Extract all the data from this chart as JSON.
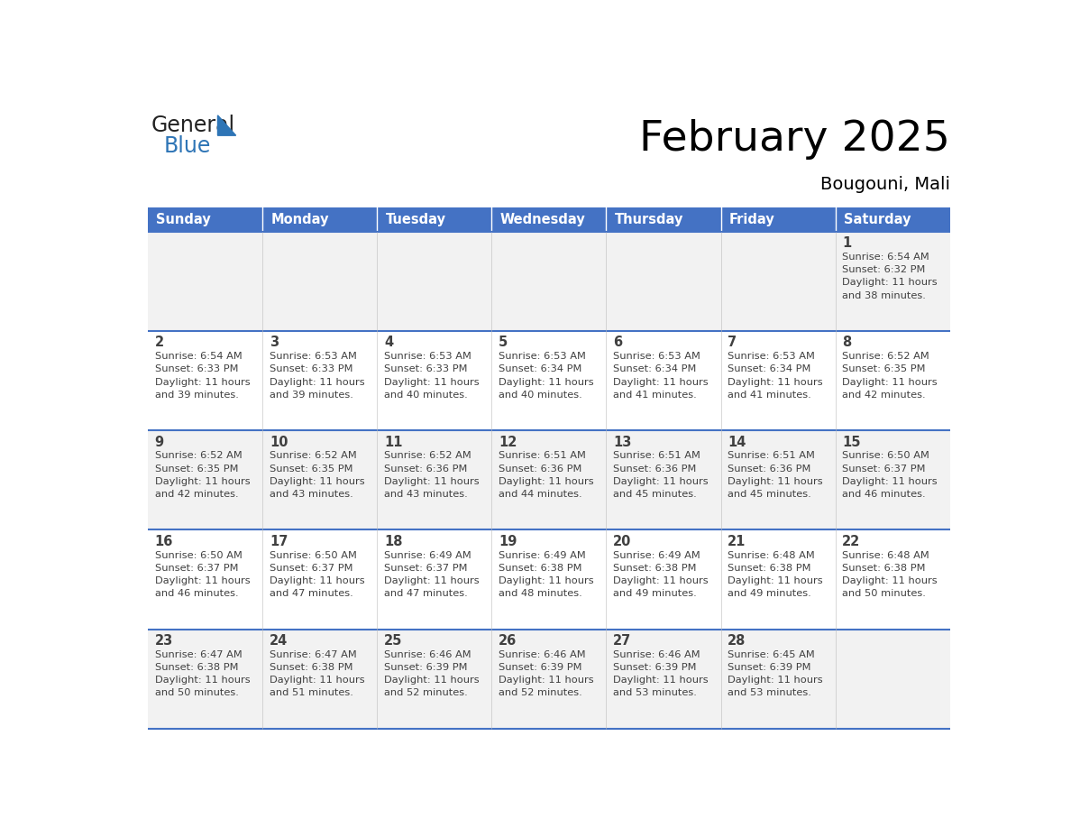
{
  "title": "February 2025",
  "subtitle": "Bougouni, Mali",
  "header_bg": "#4472C4",
  "header_text": "#FFFFFF",
  "day_names": [
    "Sunday",
    "Monday",
    "Tuesday",
    "Wednesday",
    "Thursday",
    "Friday",
    "Saturday"
  ],
  "cell_bg_even": "#F2F2F2",
  "cell_bg_odd": "#FFFFFF",
  "cell_border": "#4472C4",
  "text_color": "#404040",
  "logo_general_color": "#222222",
  "logo_blue_color": "#2E75B6",
  "calendar_data": [
    [
      null,
      null,
      null,
      null,
      null,
      null,
      {
        "day": 1,
        "sunrise": "6:54 AM",
        "sunset": "6:32 PM",
        "daylight": "11 hours\nand 38 minutes."
      }
    ],
    [
      {
        "day": 2,
        "sunrise": "6:54 AM",
        "sunset": "6:33 PM",
        "daylight": "11 hours\nand 39 minutes."
      },
      {
        "day": 3,
        "sunrise": "6:53 AM",
        "sunset": "6:33 PM",
        "daylight": "11 hours\nand 39 minutes."
      },
      {
        "day": 4,
        "sunrise": "6:53 AM",
        "sunset": "6:33 PM",
        "daylight": "11 hours\nand 40 minutes."
      },
      {
        "day": 5,
        "sunrise": "6:53 AM",
        "sunset": "6:34 PM",
        "daylight": "11 hours\nand 40 minutes."
      },
      {
        "day": 6,
        "sunrise": "6:53 AM",
        "sunset": "6:34 PM",
        "daylight": "11 hours\nand 41 minutes."
      },
      {
        "day": 7,
        "sunrise": "6:53 AM",
        "sunset": "6:34 PM",
        "daylight": "11 hours\nand 41 minutes."
      },
      {
        "day": 8,
        "sunrise": "6:52 AM",
        "sunset": "6:35 PM",
        "daylight": "11 hours\nand 42 minutes."
      }
    ],
    [
      {
        "day": 9,
        "sunrise": "6:52 AM",
        "sunset": "6:35 PM",
        "daylight": "11 hours\nand 42 minutes."
      },
      {
        "day": 10,
        "sunrise": "6:52 AM",
        "sunset": "6:35 PM",
        "daylight": "11 hours\nand 43 minutes."
      },
      {
        "day": 11,
        "sunrise": "6:52 AM",
        "sunset": "6:36 PM",
        "daylight": "11 hours\nand 43 minutes."
      },
      {
        "day": 12,
        "sunrise": "6:51 AM",
        "sunset": "6:36 PM",
        "daylight": "11 hours\nand 44 minutes."
      },
      {
        "day": 13,
        "sunrise": "6:51 AM",
        "sunset": "6:36 PM",
        "daylight": "11 hours\nand 45 minutes."
      },
      {
        "day": 14,
        "sunrise": "6:51 AM",
        "sunset": "6:36 PM",
        "daylight": "11 hours\nand 45 minutes."
      },
      {
        "day": 15,
        "sunrise": "6:50 AM",
        "sunset": "6:37 PM",
        "daylight": "11 hours\nand 46 minutes."
      }
    ],
    [
      {
        "day": 16,
        "sunrise": "6:50 AM",
        "sunset": "6:37 PM",
        "daylight": "11 hours\nand 46 minutes."
      },
      {
        "day": 17,
        "sunrise": "6:50 AM",
        "sunset": "6:37 PM",
        "daylight": "11 hours\nand 47 minutes."
      },
      {
        "day": 18,
        "sunrise": "6:49 AM",
        "sunset": "6:37 PM",
        "daylight": "11 hours\nand 47 minutes."
      },
      {
        "day": 19,
        "sunrise": "6:49 AM",
        "sunset": "6:38 PM",
        "daylight": "11 hours\nand 48 minutes."
      },
      {
        "day": 20,
        "sunrise": "6:49 AM",
        "sunset": "6:38 PM",
        "daylight": "11 hours\nand 49 minutes."
      },
      {
        "day": 21,
        "sunrise": "6:48 AM",
        "sunset": "6:38 PM",
        "daylight": "11 hours\nand 49 minutes."
      },
      {
        "day": 22,
        "sunrise": "6:48 AM",
        "sunset": "6:38 PM",
        "daylight": "11 hours\nand 50 minutes."
      }
    ],
    [
      {
        "day": 23,
        "sunrise": "6:47 AM",
        "sunset": "6:38 PM",
        "daylight": "11 hours\nand 50 minutes."
      },
      {
        "day": 24,
        "sunrise": "6:47 AM",
        "sunset": "6:38 PM",
        "daylight": "11 hours\nand 51 minutes."
      },
      {
        "day": 25,
        "sunrise": "6:46 AM",
        "sunset": "6:39 PM",
        "daylight": "11 hours\nand 52 minutes."
      },
      {
        "day": 26,
        "sunrise": "6:46 AM",
        "sunset": "6:39 PM",
        "daylight": "11 hours\nand 52 minutes."
      },
      {
        "day": 27,
        "sunrise": "6:46 AM",
        "sunset": "6:39 PM",
        "daylight": "11 hours\nand 53 minutes."
      },
      {
        "day": 28,
        "sunrise": "6:45 AM",
        "sunset": "6:39 PM",
        "daylight": "11 hours\nand 53 minutes."
      },
      null
    ]
  ]
}
